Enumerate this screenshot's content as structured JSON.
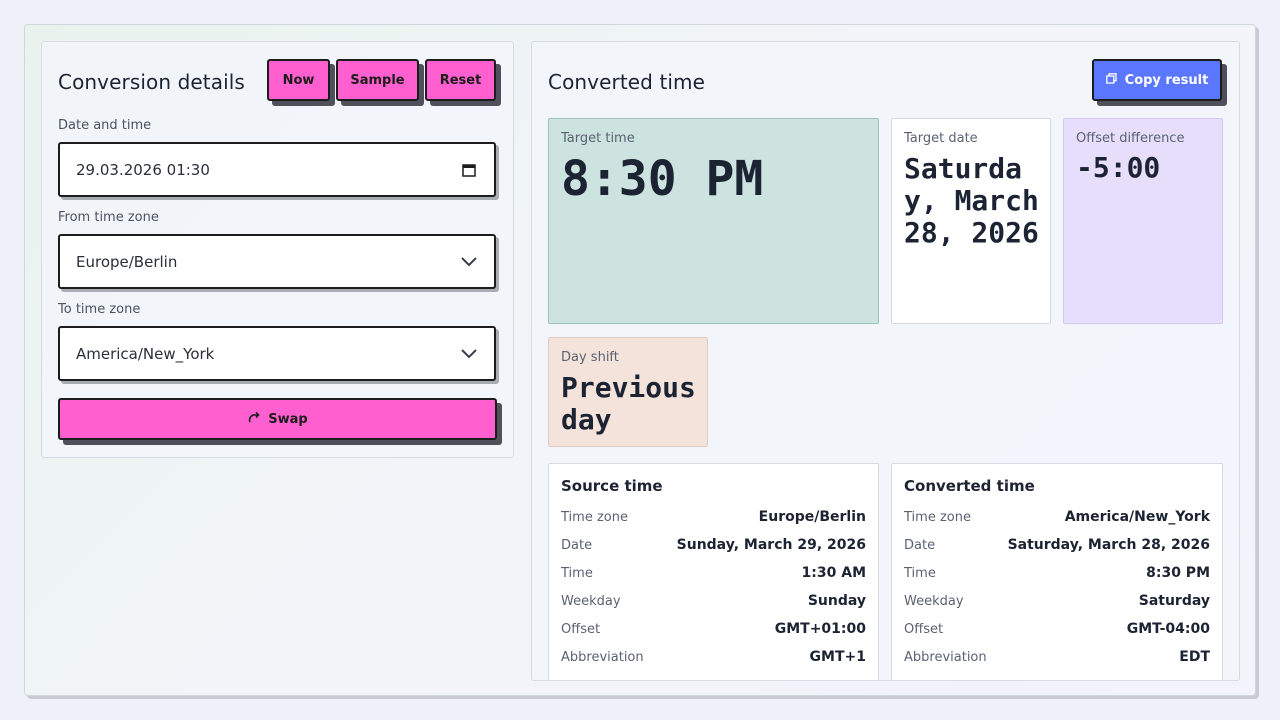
{
  "left": {
    "title": "Conversion details",
    "buttons": {
      "now": "Now",
      "sample": "Sample",
      "reset": "Reset"
    },
    "datetime": {
      "label": "Date and time",
      "value": "29.03.2026 01:30"
    },
    "from_tz": {
      "label": "From time zone",
      "value": "Europe/Berlin"
    },
    "to_tz": {
      "label": "To time zone",
      "value": "America/New_York"
    },
    "swap_label": "Swap"
  },
  "right": {
    "title": "Converted time",
    "copy_label": "Copy result",
    "target_time": {
      "caption": "Target time",
      "value": "8:30 PM"
    },
    "target_date": {
      "caption": "Target date",
      "value": "Saturday, March 28, 2026"
    },
    "offset_diff": {
      "caption": "Offset difference",
      "value": "-5:00"
    },
    "day_shift": {
      "caption": "Day shift",
      "value": "Previous day"
    },
    "source": {
      "title": "Source time",
      "rows": [
        {
          "k": "Time zone",
          "v": "Europe/Berlin"
        },
        {
          "k": "Date",
          "v": "Sunday, March 29, 2026"
        },
        {
          "k": "Time",
          "v": "1:30 AM"
        },
        {
          "k": "Weekday",
          "v": "Sunday"
        },
        {
          "k": "Offset",
          "v": "GMT+01:00"
        },
        {
          "k": "Abbreviation",
          "v": "GMT+1"
        }
      ]
    },
    "converted": {
      "title": "Converted time",
      "rows": [
        {
          "k": "Time zone",
          "v": "America/New_York"
        },
        {
          "k": "Date",
          "v": "Saturday, March 28, 2026"
        },
        {
          "k": "Time",
          "v": "8:30 PM"
        },
        {
          "k": "Weekday",
          "v": "Saturday"
        },
        {
          "k": "Offset",
          "v": "GMT-04:00"
        },
        {
          "k": "Abbreviation",
          "v": "EDT"
        }
      ]
    }
  },
  "colors": {
    "accent_pink": "#ff5fcf",
    "accent_blue": "#5b77ff",
    "card_time": "#cde3df",
    "card_offset": "#e6defa",
    "card_shift": "#f3e3da"
  },
  "icons": {
    "datetime": "calendar-icon",
    "select": "chevron-down-icon",
    "swap": "redo-icon",
    "copy": "copy-icon"
  }
}
